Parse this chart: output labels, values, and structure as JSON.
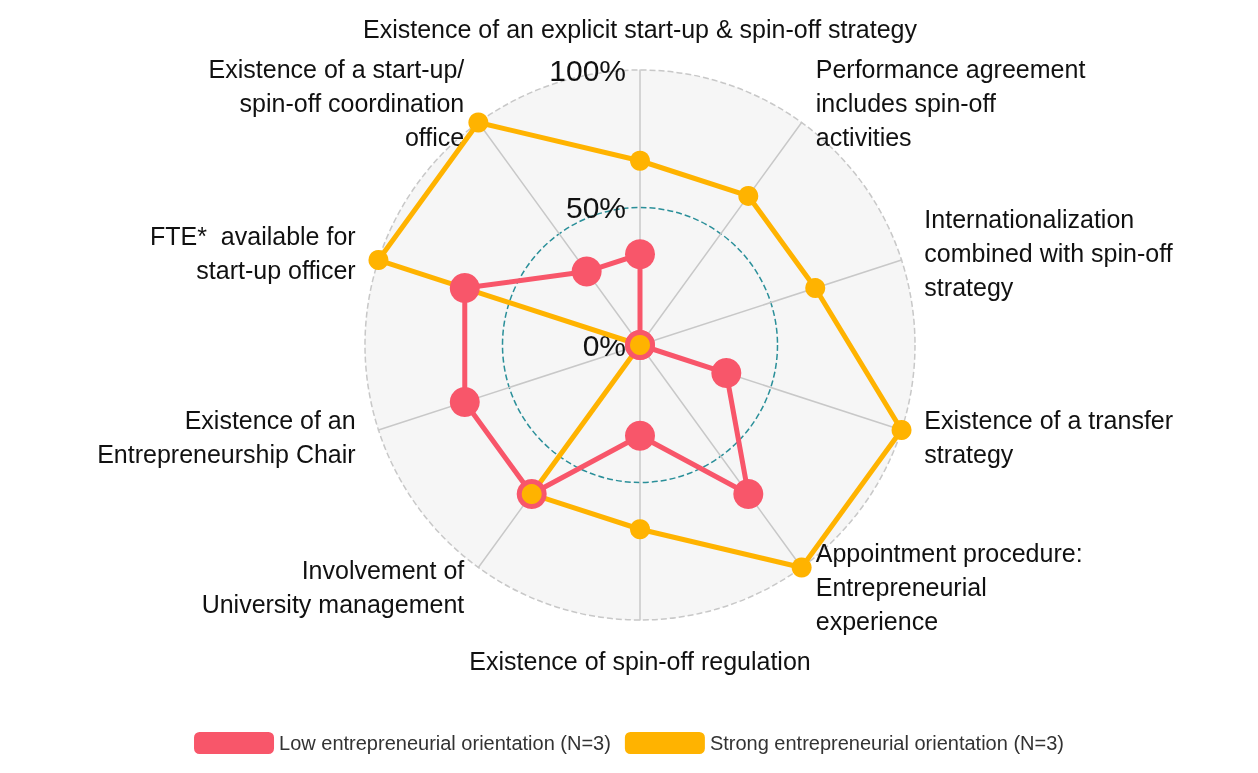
{
  "chart_data": {
    "type": "radar",
    "categories": [
      "Existence of an explicit start-up & spin-off strategy",
      "Performance agreement includes spin-off activities",
      "Internationalization combined with spin-off strategy",
      "Existence of a transfer strategy",
      "Appointment procedure: Entrepreneurial experience",
      "Existence of spin-off regulation",
      "Involvement of University management",
      "Existence of an Entrepreneurship Chair",
      "FTE*  available for start-up officer",
      "Existence of a start-up/ spin-off coordination office"
    ],
    "series": [
      {
        "name": "Low entrepreneurial orientation (N=3)",
        "color": "#f8566a",
        "values": [
          33,
          0,
          0,
          33,
          67,
          33,
          67,
          67,
          67,
          33
        ]
      },
      {
        "name": "Strong entrepreneurial orientation (N=3)",
        "color": "#ffb300",
        "values": [
          67,
          67,
          67,
          100,
          100,
          67,
          67,
          0,
          100,
          100
        ]
      }
    ],
    "ylim": [
      0,
      100
    ],
    "yticks": [
      {
        "value": 0,
        "label": "0%"
      },
      {
        "value": 50,
        "label": "50%"
      },
      {
        "value": 100,
        "label": "100%"
      }
    ],
    "grid": true,
    "legend": "bottom",
    "marker": "circle",
    "line_style": "solid"
  }
}
